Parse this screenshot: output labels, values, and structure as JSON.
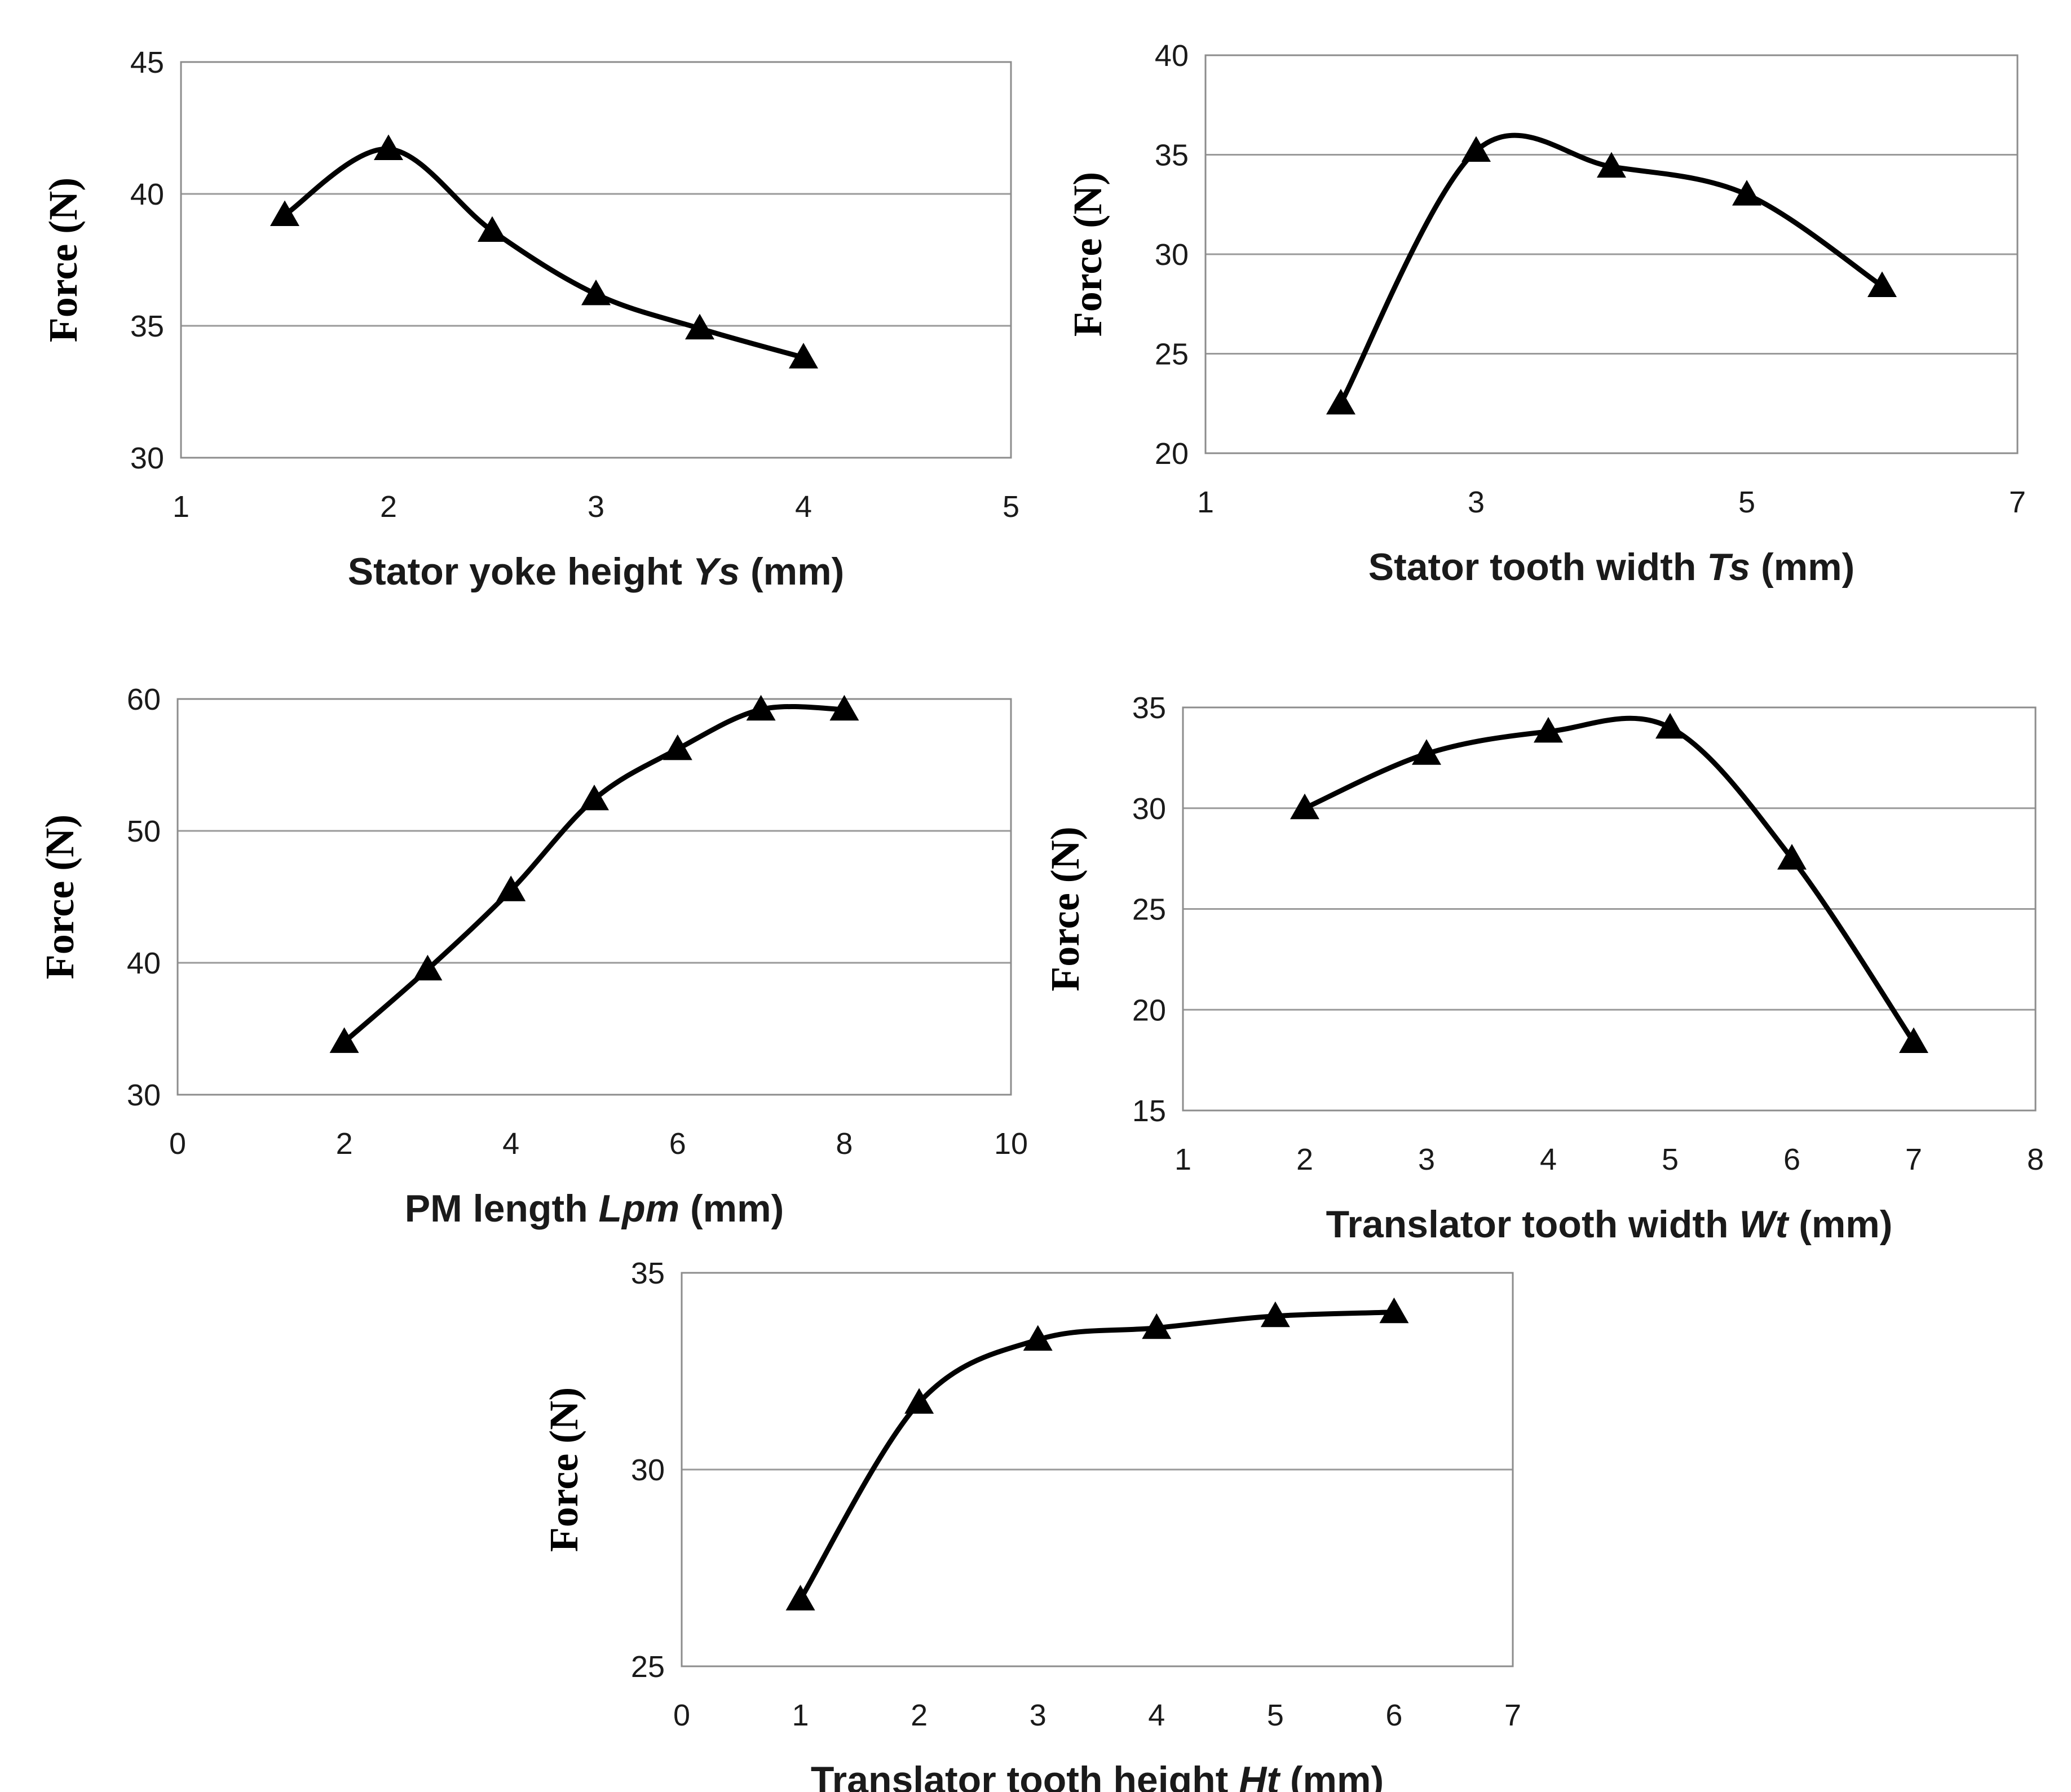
{
  "chart_data": [
    {
      "type": "line",
      "marker": "triangle",
      "x": [
        1.5,
        2,
        2.5,
        3,
        3.5,
        4
      ],
      "y": [
        39.2,
        41.7,
        38.6,
        36.2,
        34.9,
        33.8
      ],
      "xlim": [
        1,
        5
      ],
      "xticks": [
        1,
        2,
        3,
        4,
        5
      ],
      "ylim": [
        30,
        45
      ],
      "yticks": [
        30,
        35,
        40,
        45
      ],
      "ylabel": "Force (N)",
      "xlabel": "Stator yoke height",
      "xlabel_symbol": "Ys",
      "xlabel_unit": "(mm)",
      "grid": true
    },
    {
      "type": "line",
      "marker": "triangle",
      "x": [
        2,
        3,
        4,
        5,
        6
      ],
      "y": [
        22.5,
        35.2,
        34.4,
        33.0,
        28.4
      ],
      "xlim": [
        1,
        7
      ],
      "xticks": [
        1,
        3,
        5,
        7
      ],
      "ylim": [
        20,
        40
      ],
      "yticks": [
        20,
        25,
        30,
        35,
        40
      ],
      "ylabel": "Force (N)",
      "xlabel": "Stator tooth width",
      "xlabel_symbol": "Ts",
      "xlabel_unit": "(mm)",
      "grid": true
    },
    {
      "type": "line",
      "marker": "triangle",
      "x": [
        2,
        3,
        4,
        5,
        6,
        7,
        8
      ],
      "y": [
        34.0,
        39.5,
        45.5,
        52.4,
        56.2,
        59.2,
        59.2
      ],
      "xlim": [
        0,
        10
      ],
      "xticks": [
        0,
        2,
        4,
        6,
        8,
        10
      ],
      "ylim": [
        30,
        60
      ],
      "yticks": [
        30,
        40,
        50,
        60
      ],
      "ylabel": "Force (N)",
      "xlabel": "PM length",
      "xlabel_symbol": "Lpm",
      "xlabel_unit": "(mm)",
      "grid": true
    },
    {
      "type": "line",
      "marker": "triangle",
      "x": [
        2,
        3,
        4,
        5,
        6,
        7
      ],
      "y": [
        30.0,
        32.7,
        33.8,
        34.0,
        27.5,
        18.4
      ],
      "xlim": [
        1,
        8
      ],
      "xticks": [
        1,
        2,
        3,
        4,
        5,
        6,
        7,
        8
      ],
      "ylim": [
        15,
        35
      ],
      "yticks": [
        15,
        20,
        25,
        30,
        35
      ],
      "ylabel": "Force (N)",
      "xlabel": "Translator tooth width",
      "xlabel_symbol": "Wt",
      "xlabel_unit": "(mm)",
      "grid": true
    },
    {
      "type": "line",
      "marker": "triangle",
      "x": [
        1,
        2,
        3,
        4,
        5,
        6
      ],
      "y": [
        26.7,
        31.7,
        33.3,
        33.6,
        33.9,
        34.0
      ],
      "xlim": [
        0,
        7
      ],
      "xticks": [
        0,
        1,
        2,
        3,
        4,
        5,
        6,
        7
      ],
      "ylim": [
        25,
        35
      ],
      "yticks": [
        25,
        30,
        35
      ],
      "ylabel": "Force (N)",
      "xlabel": "Translator tooth height",
      "xlabel_symbol": "Ht",
      "xlabel_unit": "(mm)",
      "grid": true
    }
  ]
}
